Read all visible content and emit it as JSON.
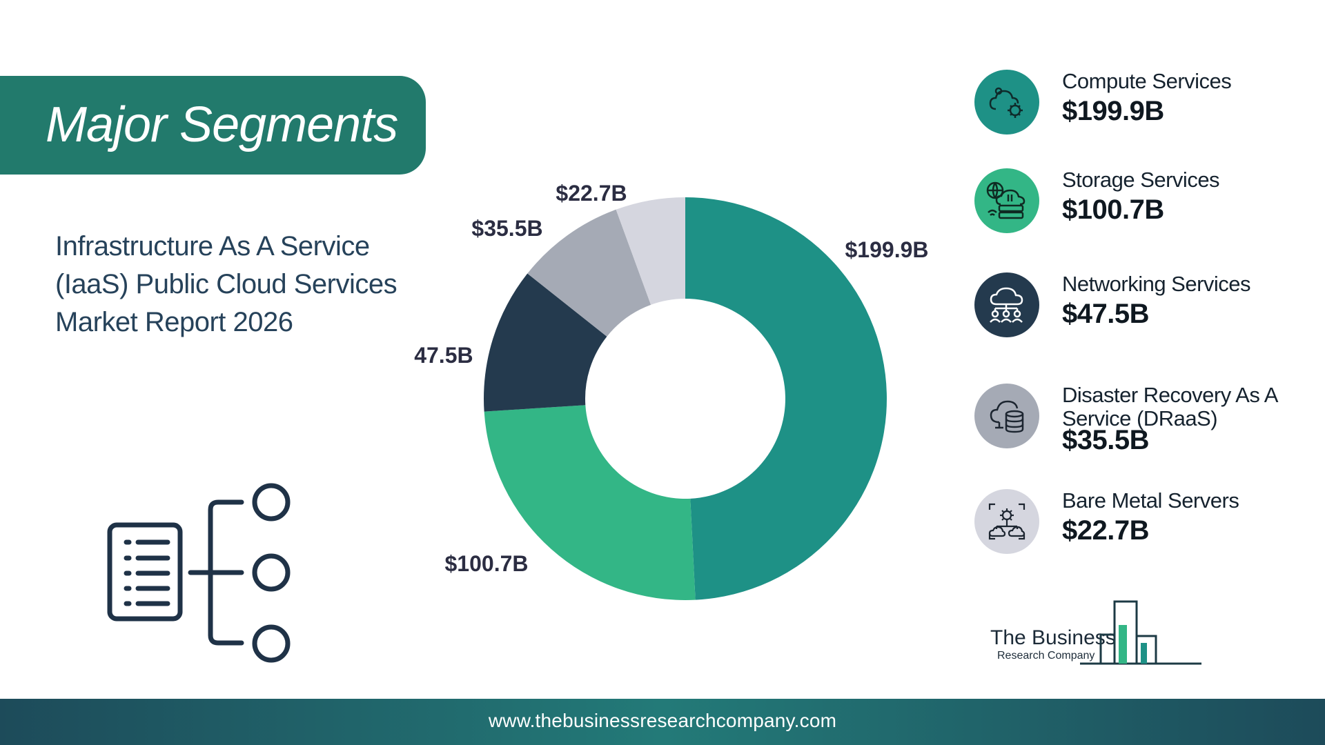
{
  "header": {
    "title": "Major Segments"
  },
  "report": {
    "title": "Infrastructure As A Service (IaaS) Public Cloud Services Market Report 2026"
  },
  "colors": {
    "compute": "#1e9186",
    "storage": "#33b686",
    "networking": "#243a4e",
    "draas": "#a5aab5",
    "bare_metal": "#d5d6df",
    "banner": "#227a6c"
  },
  "chart_data": {
    "type": "pie",
    "style": "donut",
    "categories": [
      "Compute Services",
      "Storage Services",
      "Networking Services",
      "Disaster Recovery As A Service (DRaaS)",
      "Bare Metal Servers"
    ],
    "values": [
      199.9,
      100.7,
      47.5,
      35.5,
      22.7
    ],
    "labels": [
      "$199.9B",
      "$100.7B",
      "$47.5B",
      "$35.5B",
      "$22.7B"
    ],
    "unit": "$B"
  },
  "legend": {
    "items": [
      {
        "name": "Compute Services",
        "value": "$199.9B",
        "icon": "cloud-gear-icon",
        "color": "#1e9186"
      },
      {
        "name": "Storage Services",
        "value": "$100.7B",
        "icon": "cloud-storage-icon",
        "color": "#33b686"
      },
      {
        "name": "Networking Services",
        "value": "$47.5B",
        "icon": "cloud-network-icon",
        "color": "#243a4e"
      },
      {
        "name": "Disaster Recovery As A Service (DRaaS)",
        "value": "$35.5B",
        "icon": "cloud-database-icon",
        "color": "#a5aab5"
      },
      {
        "name": "Bare Metal Servers",
        "value": "$22.7B",
        "icon": "server-cloud-icon",
        "color": "#d5d6df"
      }
    ]
  },
  "logo": {
    "line1": "The Business",
    "line2": "Research Company"
  },
  "footer": {
    "url": "www.thebusinessresearchcompany.com"
  }
}
